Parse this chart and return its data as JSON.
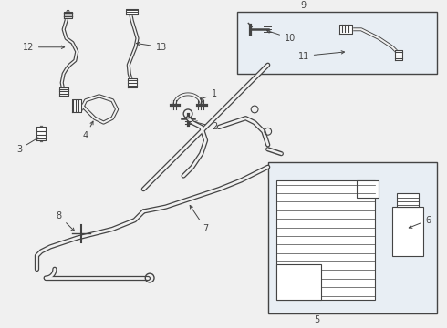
{
  "bg_color": "#f0f0f0",
  "line_color": "#444444",
  "box_bg_color": "#e8eef4",
  "label_color": "#111111",
  "figsize": [
    4.9,
    3.6
  ],
  "dpi": 100,
  "lw_main": 1.8,
  "lw_hose": 1.5,
  "fs": 7.0
}
